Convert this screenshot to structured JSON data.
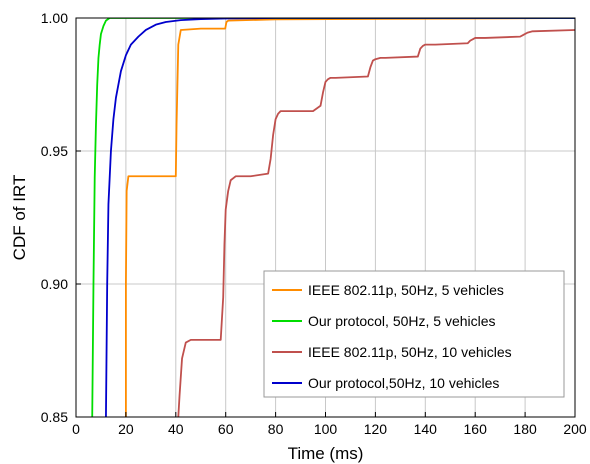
{
  "chart_data": {
    "type": "line",
    "title": "",
    "xlabel": "Time (ms)",
    "ylabel": "CDF of IRT",
    "xlim": [
      0,
      200
    ],
    "ylim": [
      0.85,
      1.0
    ],
    "x_ticks": [
      0,
      20,
      40,
      60,
      80,
      100,
      120,
      140,
      160,
      180,
      200
    ],
    "x_tick_labels": [
      "0",
      "20",
      "40",
      "60",
      "80",
      "100",
      "120",
      "140",
      "160",
      "180",
      "200"
    ],
    "y_ticks": [
      0.85,
      0.9,
      0.95,
      1.0
    ],
    "y_tick_labels": [
      "0.85",
      "0.90",
      "0.95",
      "1.00"
    ],
    "grid": true,
    "legend_position": "lower-right",
    "series": [
      {
        "name": "IEEE 802.11p, 50Hz, 5 vehicles",
        "color": "#ff8c00",
        "x": [
          20,
          20,
          20.3,
          21,
          40,
          40.3,
          41,
          42,
          50,
          59.8,
          60.3,
          61,
          80,
          200
        ],
        "y": [
          0.85,
          0.9,
          0.935,
          0.9405,
          0.9405,
          0.96,
          0.99,
          0.9955,
          0.996,
          0.996,
          0.9985,
          0.999,
          0.9995,
          1.0
        ]
      },
      {
        "name": "Our protocol, 50Hz, 5 vehicles",
        "color": "#00dd00",
        "x": [
          6.5,
          7,
          7.5,
          8,
          8.5,
          9,
          9.5,
          10,
          11,
          12,
          13.5,
          16,
          200
        ],
        "y": [
          0.85,
          0.9,
          0.94,
          0.96,
          0.975,
          0.985,
          0.99,
          0.994,
          0.997,
          0.999,
          1.0,
          1.0,
          1.0
        ]
      },
      {
        "name": "IEEE 802.11p, 50Hz, 10 vehicles",
        "color": "#c0504d",
        "x": [
          41,
          41.5,
          42.5,
          44,
          46,
          58,
          59,
          59.5,
          60,
          61,
          62,
          64,
          70,
          77,
          78,
          79,
          80,
          81,
          82,
          84,
          95,
          98,
          99,
          100,
          101,
          102,
          104,
          117,
          118,
          119,
          120,
          122,
          124,
          137,
          138,
          139,
          140,
          142,
          144,
          157,
          158,
          159,
          160,
          162,
          164,
          178,
          179,
          180,
          181,
          183,
          200
        ],
        "y": [
          0.85,
          0.858,
          0.872,
          0.878,
          0.879,
          0.879,
          0.895,
          0.915,
          0.928,
          0.935,
          0.939,
          0.9405,
          0.9405,
          0.9415,
          0.947,
          0.956,
          0.962,
          0.964,
          0.965,
          0.965,
          0.965,
          0.967,
          0.972,
          0.976,
          0.977,
          0.9775,
          0.9775,
          0.978,
          0.9815,
          0.984,
          0.9845,
          0.985,
          0.985,
          0.9855,
          0.9885,
          0.9895,
          0.99,
          0.99,
          0.99,
          0.9905,
          0.9915,
          0.992,
          0.9925,
          0.9925,
          0.9925,
          0.993,
          0.9935,
          0.994,
          0.9945,
          0.995,
          0.9955
        ]
      },
      {
        "name": "Our protocol,50Hz, 10 vehicles",
        "color": "#0000cc",
        "x": [
          12,
          12.5,
          13,
          14,
          15,
          16,
          18,
          20,
          22,
          25,
          28,
          32,
          36,
          42,
          50,
          60,
          80,
          200
        ],
        "y": [
          0.85,
          0.9,
          0.93,
          0.95,
          0.962,
          0.97,
          0.98,
          0.986,
          0.99,
          0.993,
          0.9955,
          0.9975,
          0.9985,
          0.9992,
          0.9996,
          0.9998,
          1.0,
          1.0
        ]
      }
    ]
  }
}
